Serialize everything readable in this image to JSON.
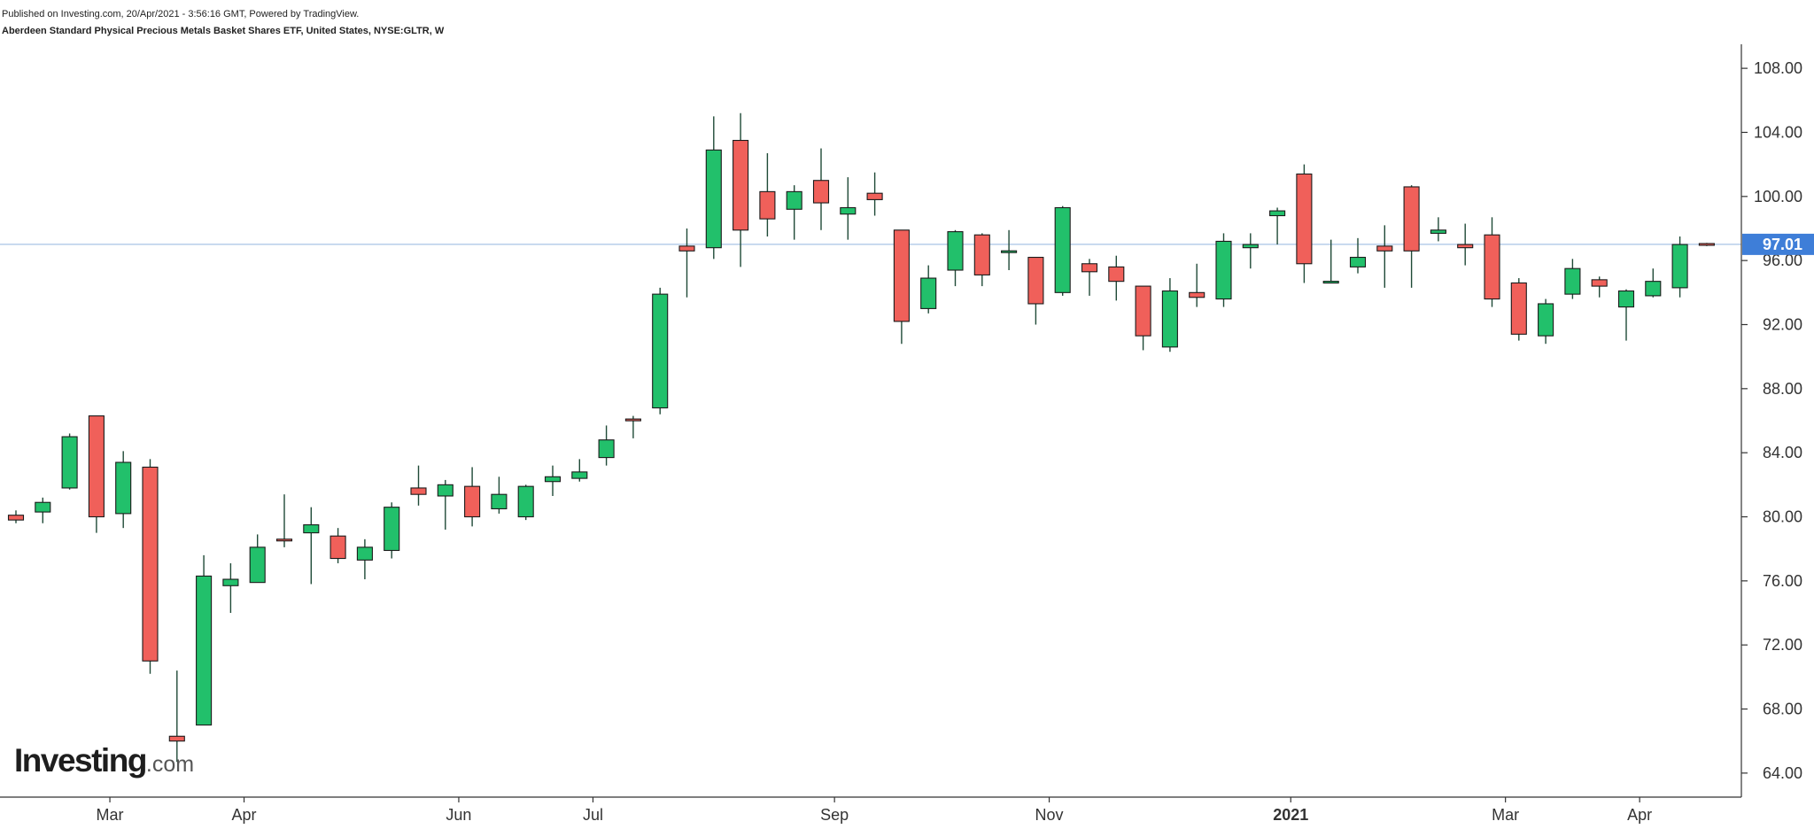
{
  "header": {
    "publish_note": "Published on Investing.com, 20/Apr/2021 - 3:56:16 GMT, Powered by TradingView.",
    "instrument": "Aberdeen Standard Physical Precious Metals Basket Shares ETF, United States, NYSE:GLTR, W"
  },
  "logo": {
    "main": "Investing",
    "sub": ".com"
  },
  "colors": {
    "up": "#22c06b",
    "down": "#f0605a",
    "wick": "#1f4a37",
    "last_price_line": "#a9c4e6",
    "last_price_badge": "#3e7ed8",
    "axis": "#333333",
    "text": "#333333"
  },
  "chart_data": {
    "type": "candlestick",
    "title": "Aberdeen Standard Physical Precious Metals Basket Shares ETF, United States, NYSE:GLTR, W",
    "interval": "weekly",
    "ylim": [
      62.5,
      109.5
    ],
    "y_ticks": [
      "64.00",
      "68.00",
      "72.00",
      "76.00",
      "80.00",
      "84.00",
      "88.00",
      "92.00",
      "96.00",
      "100.00",
      "104.00",
      "108.00"
    ],
    "x_ticks": [
      {
        "label": "Mar",
        "week_index": 4
      },
      {
        "label": "Apr",
        "week_index": 9
      },
      {
        "label": "Jun",
        "week_index": 17
      },
      {
        "label": "Jul",
        "week_index": 22
      },
      {
        "label": "Sep",
        "week_index": 31
      },
      {
        "label": "Nov",
        "week_index": 39
      },
      {
        "label": "2021",
        "week_index": 48,
        "bold": true
      },
      {
        "label": "Mar",
        "week_index": 56
      },
      {
        "label": "Apr",
        "week_index": 61
      }
    ],
    "last_price": 97.01,
    "last_price_label": "97.01",
    "candles": [
      {
        "o": 80.1,
        "h": 80.4,
        "l": 79.6,
        "c": 79.8
      },
      {
        "o": 80.3,
        "h": 81.2,
        "l": 79.6,
        "c": 80.9
      },
      {
        "o": 81.8,
        "h": 85.2,
        "l": 81.7,
        "c": 85.0
      },
      {
        "o": 86.3,
        "h": 86.3,
        "l": 79.0,
        "c": 80.0
      },
      {
        "o": 80.2,
        "h": 84.1,
        "l": 79.3,
        "c": 83.4
      },
      {
        "o": 83.1,
        "h": 83.6,
        "l": 70.2,
        "c": 71.0
      },
      {
        "o": 66.3,
        "h": 70.4,
        "l": 64.7,
        "c": 66.0
      },
      {
        "o": 67.0,
        "h": 77.6,
        "l": 67.0,
        "c": 76.3
      },
      {
        "o": 75.7,
        "h": 77.1,
        "l": 74.0,
        "c": 76.1
      },
      {
        "o": 75.9,
        "h": 78.9,
        "l": 75.9,
        "c": 78.1
      },
      {
        "o": 78.6,
        "h": 81.4,
        "l": 78.1,
        "c": 78.5
      },
      {
        "o": 79.0,
        "h": 80.6,
        "l": 75.8,
        "c": 79.5
      },
      {
        "o": 78.8,
        "h": 79.3,
        "l": 77.1,
        "c": 77.4
      },
      {
        "o": 77.3,
        "h": 78.6,
        "l": 76.1,
        "c": 78.1
      },
      {
        "o": 77.9,
        "h": 80.9,
        "l": 77.4,
        "c": 80.6
      },
      {
        "o": 81.8,
        "h": 83.2,
        "l": 80.7,
        "c": 81.4
      },
      {
        "o": 81.3,
        "h": 82.3,
        "l": 79.2,
        "c": 82.0
      },
      {
        "o": 81.9,
        "h": 83.1,
        "l": 79.4,
        "c": 80.0
      },
      {
        "o": 80.5,
        "h": 82.5,
        "l": 80.2,
        "c": 81.4
      },
      {
        "o": 80.0,
        "h": 82.0,
        "l": 79.8,
        "c": 81.9
      },
      {
        "o": 82.2,
        "h": 83.2,
        "l": 81.3,
        "c": 82.5
      },
      {
        "o": 82.4,
        "h": 83.6,
        "l": 82.2,
        "c": 82.8
      },
      {
        "o": 83.7,
        "h": 85.7,
        "l": 83.2,
        "c": 84.8
      },
      {
        "o": 86.1,
        "h": 86.3,
        "l": 84.9,
        "c": 86.0
      },
      {
        "o": 86.8,
        "h": 94.3,
        "l": 86.4,
        "c": 93.9
      },
      {
        "o": 96.9,
        "h": 98.0,
        "l": 93.7,
        "c": 96.6
      },
      {
        "o": 96.8,
        "h": 105.0,
        "l": 96.1,
        "c": 102.9
      },
      {
        "o": 103.5,
        "h": 105.2,
        "l": 95.6,
        "c": 97.9
      },
      {
        "o": 100.3,
        "h": 102.7,
        "l": 97.5,
        "c": 98.6
      },
      {
        "o": 99.2,
        "h": 100.7,
        "l": 97.3,
        "c": 100.3
      },
      {
        "o": 101.0,
        "h": 103.0,
        "l": 97.9,
        "c": 99.6
      },
      {
        "o": 98.9,
        "h": 101.2,
        "l": 97.3,
        "c": 99.3
      },
      {
        "o": 100.2,
        "h": 101.5,
        "l": 98.8,
        "c": 99.8
      },
      {
        "o": 97.9,
        "h": 97.9,
        "l": 90.8,
        "c": 92.2
      },
      {
        "o": 93.0,
        "h": 95.7,
        "l": 92.7,
        "c": 94.9
      },
      {
        "o": 95.4,
        "h": 97.9,
        "l": 94.4,
        "c": 97.8
      },
      {
        "o": 97.6,
        "h": 97.7,
        "l": 94.4,
        "c": 95.1
      },
      {
        "o": 96.5,
        "h": 97.9,
        "l": 95.4,
        "c": 96.6
      },
      {
        "o": 96.2,
        "h": 96.2,
        "l": 92.0,
        "c": 93.3
      },
      {
        "o": 94.0,
        "h": 99.4,
        "l": 93.8,
        "c": 99.3
      },
      {
        "o": 95.8,
        "h": 96.1,
        "l": 93.8,
        "c": 95.3
      },
      {
        "o": 95.6,
        "h": 96.3,
        "l": 93.5,
        "c": 94.7
      },
      {
        "o": 94.4,
        "h": 94.4,
        "l": 90.4,
        "c": 91.3
      },
      {
        "o": 90.6,
        "h": 94.9,
        "l": 90.3,
        "c": 94.1
      },
      {
        "o": 94.0,
        "h": 95.8,
        "l": 93.1,
        "c": 93.7
      },
      {
        "o": 93.6,
        "h": 97.7,
        "l": 93.1,
        "c": 97.2
      },
      {
        "o": 96.8,
        "h": 97.7,
        "l": 95.5,
        "c": 97.0
      },
      {
        "o": 98.8,
        "h": 99.3,
        "l": 97.0,
        "c": 99.1
      },
      {
        "o": 101.4,
        "h": 102.0,
        "l": 94.6,
        "c": 95.8
      },
      {
        "o": 94.6,
        "h": 97.3,
        "l": 94.6,
        "c": 94.7
      },
      {
        "o": 95.6,
        "h": 97.4,
        "l": 95.2,
        "c": 96.2
      },
      {
        "o": 96.9,
        "h": 98.2,
        "l": 94.3,
        "c": 96.6
      },
      {
        "o": 100.6,
        "h": 100.7,
        "l": 94.3,
        "c": 96.6
      },
      {
        "o": 97.7,
        "h": 98.7,
        "l": 97.2,
        "c": 97.9
      },
      {
        "o": 97.0,
        "h": 98.3,
        "l": 95.7,
        "c": 96.8
      },
      {
        "o": 97.6,
        "h": 98.7,
        "l": 93.1,
        "c": 93.6
      },
      {
        "o": 94.6,
        "h": 94.9,
        "l": 91.0,
        "c": 91.4
      },
      {
        "o": 91.3,
        "h": 93.6,
        "l": 90.8,
        "c": 93.3
      },
      {
        "o": 93.9,
        "h": 96.1,
        "l": 93.6,
        "c": 95.5
      },
      {
        "o": 94.8,
        "h": 95.0,
        "l": 93.7,
        "c": 94.4
      },
      {
        "o": 93.1,
        "h": 94.2,
        "l": 91.0,
        "c": 94.1
      },
      {
        "o": 93.8,
        "h": 95.5,
        "l": 93.7,
        "c": 94.7
      },
      {
        "o": 94.3,
        "h": 97.5,
        "l": 93.7,
        "c": 97.0
      },
      {
        "o": 97.01,
        "h": 97.1,
        "l": 96.9,
        "c": 97.0
      }
    ]
  }
}
